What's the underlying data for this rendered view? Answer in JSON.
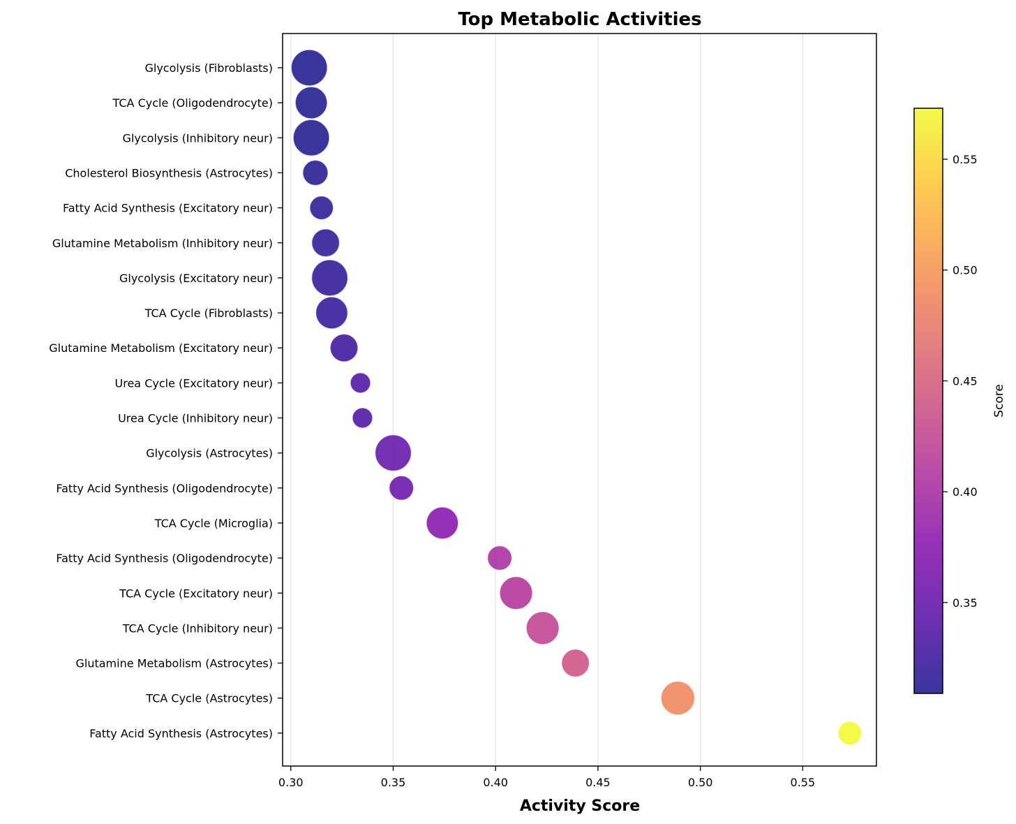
{
  "chart_data": {
    "type": "scatter",
    "title": "Top Metabolic Activities",
    "xlabel": "Activity Score",
    "ylabel": "",
    "xlim": [
      0.296,
      0.586
    ],
    "xticks": [
      0.3,
      0.35,
      0.4,
      0.45,
      0.5,
      0.55
    ],
    "xtick_labels": [
      "0.30",
      "0.35",
      "0.40",
      "0.45",
      "0.50",
      "0.55"
    ],
    "grid": "x",
    "colormap": "plasma",
    "colorbar": {
      "label": "Score",
      "range": [
        0.309,
        0.573
      ],
      "ticks": [
        0.35,
        0.4,
        0.45,
        0.5,
        0.55
      ],
      "tick_labels": [
        "0.35",
        "0.40",
        "0.45",
        "0.50",
        "0.55"
      ]
    },
    "points": [
      {
        "label": "Glycolysis (Fibroblasts)",
        "value": 0.309,
        "size": 3
      },
      {
        "label": "TCA Cycle (Oligodendrocyte)",
        "value": 0.31,
        "size": 2.5
      },
      {
        "label": "Glycolysis (Inhibitory neur)",
        "value": 0.31,
        "size": 3
      },
      {
        "label": "Cholesterol Biosynthesis (Astrocytes)",
        "value": 0.312,
        "size": 1.7
      },
      {
        "label": "Fatty Acid Synthesis (Excitatory neur)",
        "value": 0.315,
        "size": 1.5
      },
      {
        "label": "Glutamine Metabolism (Inhibitory neur)",
        "value": 0.317,
        "size": 2
      },
      {
        "label": "Glycolysis (Excitatory neur)",
        "value": 0.319,
        "size": 3
      },
      {
        "label": "TCA Cycle (Fibroblasts)",
        "value": 0.32,
        "size": 2.5
      },
      {
        "label": "Glutamine Metabolism (Excitatory neur)",
        "value": 0.326,
        "size": 2
      },
      {
        "label": "Urea Cycle (Excitatory neur)",
        "value": 0.334,
        "size": 1.1
      },
      {
        "label": "Urea Cycle (Inhibitory neur)",
        "value": 0.335,
        "size": 1.1
      },
      {
        "label": "Glycolysis (Astrocytes)",
        "value": 0.35,
        "size": 3
      },
      {
        "label": "Fatty Acid Synthesis (Oligodendrocyte)",
        "value": 0.354,
        "size": 1.6
      },
      {
        "label": "TCA Cycle (Microglia)",
        "value": 0.374,
        "size": 2.5
      },
      {
        "label": "Fatty Acid Synthesis (Oligodendrocyte)",
        "value": 0.402,
        "size": 1.6
      },
      {
        "label": "TCA Cycle (Excitatory neur)",
        "value": 0.41,
        "size": 2.6
      },
      {
        "label": "TCA Cycle (Inhibitory neur)",
        "value": 0.423,
        "size": 2.6
      },
      {
        "label": "Glutamine Metabolism (Astrocytes)",
        "value": 0.439,
        "size": 2
      },
      {
        "label": "TCA Cycle (Astrocytes)",
        "value": 0.489,
        "size": 2.7
      },
      {
        "label": "Fatty Acid Synthesis (Astrocytes)",
        "value": 0.573,
        "size": 1.5
      }
    ]
  }
}
